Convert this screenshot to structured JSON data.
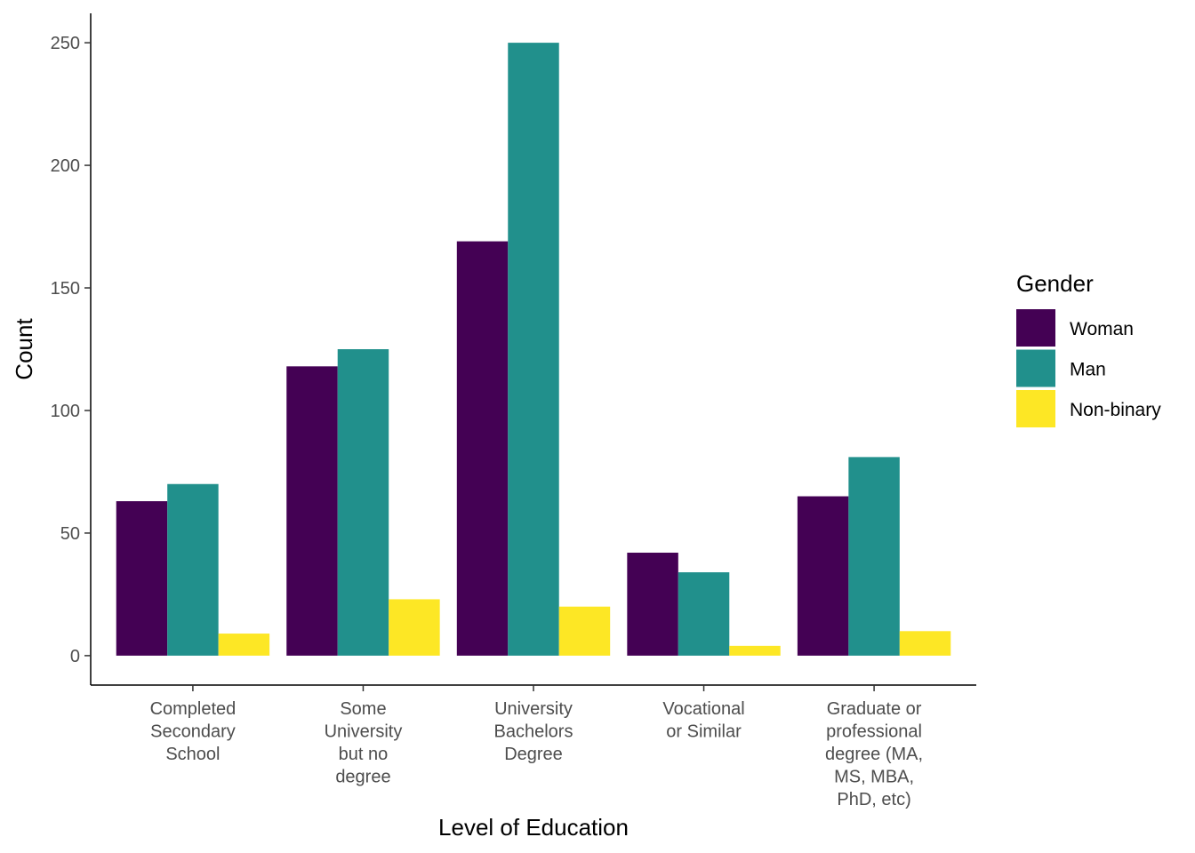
{
  "chart_data": {
    "type": "bar",
    "xlabel": "Level of Education",
    "ylabel": "Count",
    "ylim": [
      -12,
      262
    ],
    "yticks": [
      0,
      50,
      100,
      150,
      200,
      250
    ],
    "categories": [
      [
        "Completed",
        "Secondary",
        "School"
      ],
      [
        "Some",
        "University",
        "but no",
        "degree"
      ],
      [
        "University",
        "Bachelors",
        "Degree"
      ],
      [
        "Vocational",
        "or Similar"
      ],
      [
        "Graduate or",
        "professional",
        "degree (MA,",
        "MS, MBA,",
        "PhD, etc)"
      ]
    ],
    "series": [
      {
        "name": "Woman",
        "color": "#440154",
        "values": [
          63,
          118,
          169,
          42,
          65
        ]
      },
      {
        "name": "Man",
        "color": "#21908C",
        "values": [
          70,
          125,
          250,
          34,
          81
        ]
      },
      {
        "name": "Non-binary",
        "color": "#FDE725",
        "values": [
          9,
          23,
          20,
          4,
          10
        ]
      }
    ],
    "legend": {
      "title": "Gender",
      "placement": "right"
    },
    "grid": false
  }
}
